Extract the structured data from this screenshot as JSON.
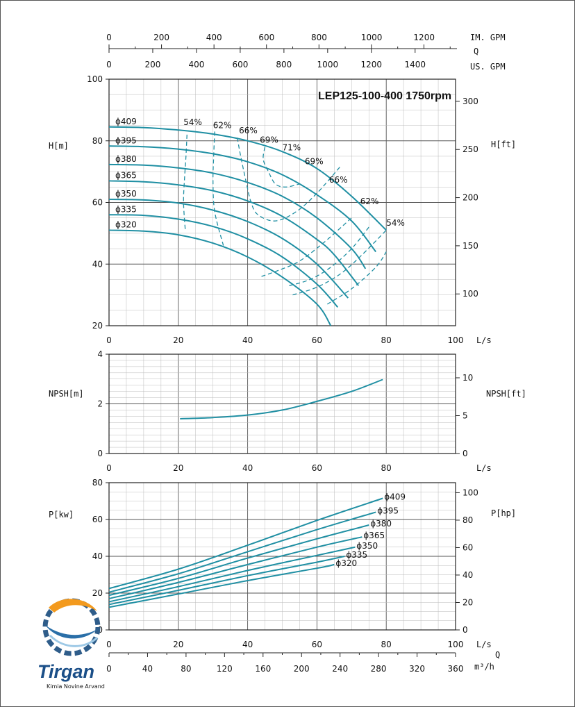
{
  "title": "LEP125-100-400 1750rpm",
  "colors": {
    "curve": "#1f8fa3",
    "grid": "#9a9a9a",
    "axis": "#222222"
  },
  "top_scales": {
    "im_gpm": {
      "label": "IM. GPM",
      "ticks": [
        "0",
        "200",
        "400",
        "600",
        "800",
        "1000",
        "1200"
      ]
    },
    "q_label": "Q",
    "us_gpm": {
      "label": "US. GPM",
      "ticks": [
        "0",
        "200",
        "400",
        "600",
        "800",
        "1000",
        "1200",
        "1400"
      ]
    }
  },
  "bottom_scale": {
    "q_label": "Q",
    "m3h": {
      "label": "m³/h",
      "ticks": [
        "0",
        "40",
        "80",
        "120",
        "160",
        "200",
        "240",
        "280",
        "320",
        "360"
      ]
    }
  },
  "logo": {
    "name": "Tirgan",
    "subtitle": "Kimia Novine Arvand"
  },
  "chart_data": [
    {
      "id": "head",
      "type": "line",
      "xlabel": "L/s",
      "ylabel": "H[m]",
      "y2label": "H[ft]",
      "xlim": [
        0,
        100
      ],
      "ylim": [
        20,
        100
      ],
      "xticks": [
        0,
        20,
        40,
        60,
        80,
        100
      ],
      "yticks": [
        20,
        40,
        60,
        80,
        100
      ],
      "y2ticks": [
        100,
        150,
        200,
        250,
        300
      ],
      "grid": true,
      "series": [
        {
          "name": "ϕ409",
          "points": [
            [
              0,
              84.5
            ],
            [
              10,
              84.3
            ],
            [
              20,
              83.5
            ],
            [
              30,
              82.2
            ],
            [
              40,
              80
            ],
            [
              50,
              76.5
            ],
            [
              60,
              71
            ],
            [
              70,
              62
            ],
            [
              80,
              51
            ]
          ]
        },
        {
          "name": "ϕ395",
          "points": [
            [
              0,
              78.3
            ],
            [
              10,
              78.1
            ],
            [
              20,
              77.3
            ],
            [
              30,
              75.8
            ],
            [
              40,
              73.2
            ],
            [
              50,
              69
            ],
            [
              60,
              62.5
            ],
            [
              70,
              54
            ],
            [
              77,
              44
            ]
          ]
        },
        {
          "name": "ϕ380",
          "points": [
            [
              0,
              72.3
            ],
            [
              10,
              72.1
            ],
            [
              20,
              71.2
            ],
            [
              30,
              69.5
            ],
            [
              40,
              66.5
            ],
            [
              50,
              62
            ],
            [
              60,
              55
            ],
            [
              70,
              45
            ],
            [
              74,
              38.5
            ]
          ]
        },
        {
          "name": "ϕ365",
          "points": [
            [
              0,
              67
            ],
            [
              10,
              66.7
            ],
            [
              20,
              65.7
            ],
            [
              30,
              63.8
            ],
            [
              40,
              60.5
            ],
            [
              50,
              55.5
            ],
            [
              60,
              48
            ],
            [
              65,
              43
            ],
            [
              72,
              33
            ]
          ]
        },
        {
          "name": "ϕ350",
          "points": [
            [
              0,
              61
            ],
            [
              10,
              60.8
            ],
            [
              20,
              59.8
            ],
            [
              30,
              57.5
            ],
            [
              40,
              53.8
            ],
            [
              50,
              48.3
            ],
            [
              60,
              40
            ],
            [
              69,
              29
            ]
          ]
        },
        {
          "name": "ϕ335",
          "points": [
            [
              0,
              56
            ],
            [
              10,
              55.8
            ],
            [
              20,
              54.6
            ],
            [
              30,
              52.2
            ],
            [
              40,
              48.2
            ],
            [
              50,
              42.3
            ],
            [
              60,
              33.5
            ],
            [
              66,
              26
            ]
          ]
        },
        {
          "name": "ϕ320",
          "points": [
            [
              0,
              51
            ],
            [
              10,
              50.7
            ],
            [
              20,
              49.5
            ],
            [
              30,
              46.8
            ],
            [
              40,
              42.3
            ],
            [
              50,
              35.8
            ],
            [
              60,
              27
            ],
            [
              64,
              20
            ]
          ]
        }
      ],
      "efficiency_lines": [
        {
          "name": "54%",
          "points": [
            [
              22.5,
              82
            ],
            [
              22.2,
              75
            ],
            [
              21.8,
              68
            ],
            [
              21.5,
              60
            ],
            [
              22,
              51
            ]
          ]
        },
        {
          "name": "62%",
          "points": [
            [
              30.5,
              83
            ],
            [
              30.2,
              75
            ],
            [
              30,
              67
            ],
            [
              30.5,
              57
            ],
            [
              33,
              46
            ]
          ]
        },
        {
          "name": "66%",
          "points": [
            [
              37,
              81
            ],
            [
              38,
              75
            ],
            [
              39.5,
              67
            ],
            [
              41,
              60
            ],
            [
              43,
              56
            ],
            [
              48,
              54
            ],
            [
              54,
              57
            ],
            [
              60,
              63
            ],
            [
              67,
              72
            ]
          ]
        },
        {
          "name": "69%",
          "points": [
            [
              45,
              78
            ],
            [
              44.5,
              74
            ],
            [
              46,
              70
            ],
            [
              48,
              66
            ],
            [
              51,
              65
            ],
            [
              55,
              66
            ]
          ]
        },
        {
          "name": "71%",
          "points": []
        },
        {
          "name": "69%",
          "points": [
            [
              44,
              36
            ],
            [
              49,
              38
            ],
            [
              55,
              41
            ],
            [
              62,
              47
            ],
            [
              70,
              55
            ]
          ]
        },
        {
          "name": "66%",
          "points": [
            [
              52,
              33
            ],
            [
              58,
              35
            ],
            [
              64,
              39
            ],
            [
              70,
              45
            ],
            [
              75,
              52
            ]
          ]
        },
        {
          "name": "62%",
          "points": [
            [
              53,
              30
            ],
            [
              60,
              32.5
            ],
            [
              67,
              37
            ],
            [
              73,
              43
            ],
            [
              80,
              51
            ]
          ]
        },
        {
          "name": "54%",
          "points": [
            [
              63,
              27
            ],
            [
              70,
              32
            ],
            [
              77,
              39
            ],
            [
              80,
              44
            ]
          ]
        }
      ],
      "efficiency_labels": [
        "54%",
        "62%",
        "66%",
        "69%",
        "71%",
        "69%",
        "66%",
        "62%",
        "54%"
      ]
    },
    {
      "id": "npsh",
      "type": "line",
      "xlabel": "L/s",
      "ylabel": "NPSH[m]",
      "y2label": "NPSH[ft]",
      "xlim": [
        0,
        100
      ],
      "ylim": [
        0,
        4
      ],
      "xticks": [
        0,
        20,
        40,
        60,
        80
      ],
      "yticks": [
        0,
        2,
        4
      ],
      "y2ticks": [
        0,
        5,
        10
      ],
      "grid": true,
      "series": [
        {
          "name": "",
          "points": [
            [
              20.5,
              1.4
            ],
            [
              30,
              1.45
            ],
            [
              40,
              1.55
            ],
            [
              50,
              1.75
            ],
            [
              60,
              2.1
            ],
            [
              70,
              2.5
            ],
            [
              79,
              2.98
            ]
          ]
        }
      ]
    },
    {
      "id": "power",
      "type": "line",
      "xlabel": "L/s",
      "ylabel": "P[kw]",
      "y2label": "P[hp]",
      "xlim": [
        0,
        100
      ],
      "ylim": [
        0,
        80
      ],
      "xticks": [
        0,
        20,
        40,
        60,
        80,
        100
      ],
      "yticks": [
        0,
        20,
        40,
        60,
        80
      ],
      "y2ticks": [
        0,
        20,
        40,
        60,
        80,
        100
      ],
      "grid": true,
      "series": [
        {
          "name": "ϕ409",
          "points": [
            [
              0,
              22.5
            ],
            [
              20,
              33
            ],
            [
              40,
              46
            ],
            [
              60,
              59.5
            ],
            [
              79,
              71.5
            ]
          ]
        },
        {
          "name": "ϕ395",
          "points": [
            [
              0,
              20.5
            ],
            [
              20,
              30.5
            ],
            [
              40,
              42.5
            ],
            [
              60,
              54.5
            ],
            [
              77,
              64
            ]
          ]
        },
        {
          "name": "ϕ380",
          "points": [
            [
              0,
              18.8
            ],
            [
              20,
              28
            ],
            [
              40,
              39
            ],
            [
              60,
              49.5
            ],
            [
              75,
              57
            ]
          ]
        },
        {
          "name": "ϕ365",
          "points": [
            [
              0,
              17
            ],
            [
              20,
              25.8
            ],
            [
              40,
              35.5
            ],
            [
              60,
              45
            ],
            [
              73,
              50.5
            ]
          ]
        },
        {
          "name": "ϕ350",
          "points": [
            [
              0,
              15.3
            ],
            [
              20,
              23.5
            ],
            [
              40,
              32.3
            ],
            [
              60,
              40.5
            ],
            [
              71,
              45
            ]
          ]
        },
        {
          "name": "ϕ335",
          "points": [
            [
              0,
              13.8
            ],
            [
              20,
              21.5
            ],
            [
              40,
              29.5
            ],
            [
              60,
              36.8
            ],
            [
              68,
              40
            ]
          ]
        },
        {
          "name": "ϕ320",
          "points": [
            [
              0,
              12.3
            ],
            [
              20,
              19.5
            ],
            [
              40,
              26.8
            ],
            [
              60,
              33.5
            ],
            [
              65,
              35.5
            ]
          ]
        }
      ]
    }
  ]
}
